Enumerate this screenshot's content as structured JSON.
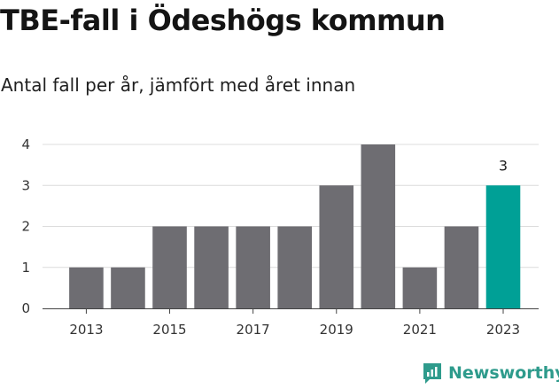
{
  "title": "TBE-fall i Ödeshögs kommun",
  "subtitle": "Antal fall per år, jämfört med året innan",
  "brand": {
    "name": "Newsworthy",
    "icon": "newsworthy-logo-icon",
    "color": "#2e9b8c"
  },
  "colors": {
    "bar": "#6e6d72",
    "highlight": "#00a096",
    "grid": "#dcdcdc"
  },
  "chart_data": {
    "type": "bar",
    "categories": [
      "2013",
      "2014",
      "2015",
      "2016",
      "2017",
      "2018",
      "2019",
      "2020",
      "2021",
      "2022",
      "2023"
    ],
    "values": [
      1,
      1,
      2,
      2,
      2,
      2,
      3,
      4,
      1,
      2,
      3
    ],
    "x_tick_labels": [
      "2013",
      "2015",
      "2017",
      "2019",
      "2021",
      "2023"
    ],
    "y_ticks": [
      0,
      1,
      2,
      3,
      4
    ],
    "ylim": [
      0,
      4
    ],
    "highlight_index": 10,
    "data_labels": [
      {
        "category": "2023",
        "text": "3"
      }
    ],
    "title": "TBE-fall i Ödeshögs kommun",
    "xlabel": "",
    "ylabel": "",
    "grid": true,
    "legend": "none"
  }
}
